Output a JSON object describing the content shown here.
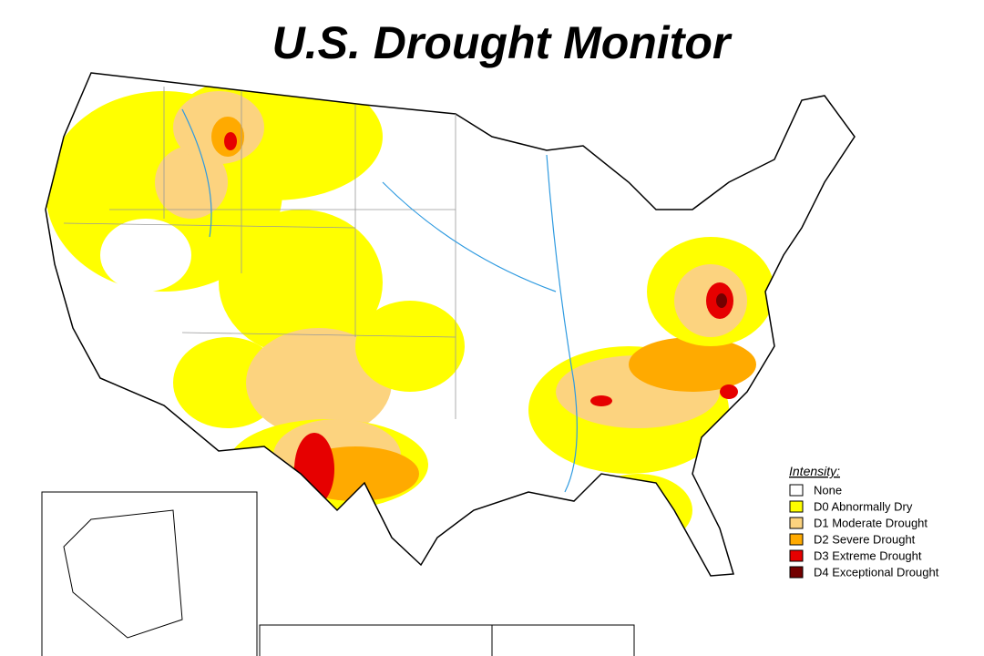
{
  "title": "U.S. Drought Monitor",
  "legend": {
    "title": "Intensity:",
    "items": [
      {
        "label": "None",
        "color": "#ffffff"
      },
      {
        "label": "D0 Abnormally Dry",
        "color": "#ffff00"
      },
      {
        "label": "D1 Moderate Drought",
        "color": "#fcd37f"
      },
      {
        "label": "D2 Severe Drought",
        "color": "#ffaa00"
      },
      {
        "label": "D3 Extreme Drought",
        "color": "#e60000"
      },
      {
        "label": "D4 Exceptional Drought",
        "color": "#730000"
      }
    ]
  }
}
